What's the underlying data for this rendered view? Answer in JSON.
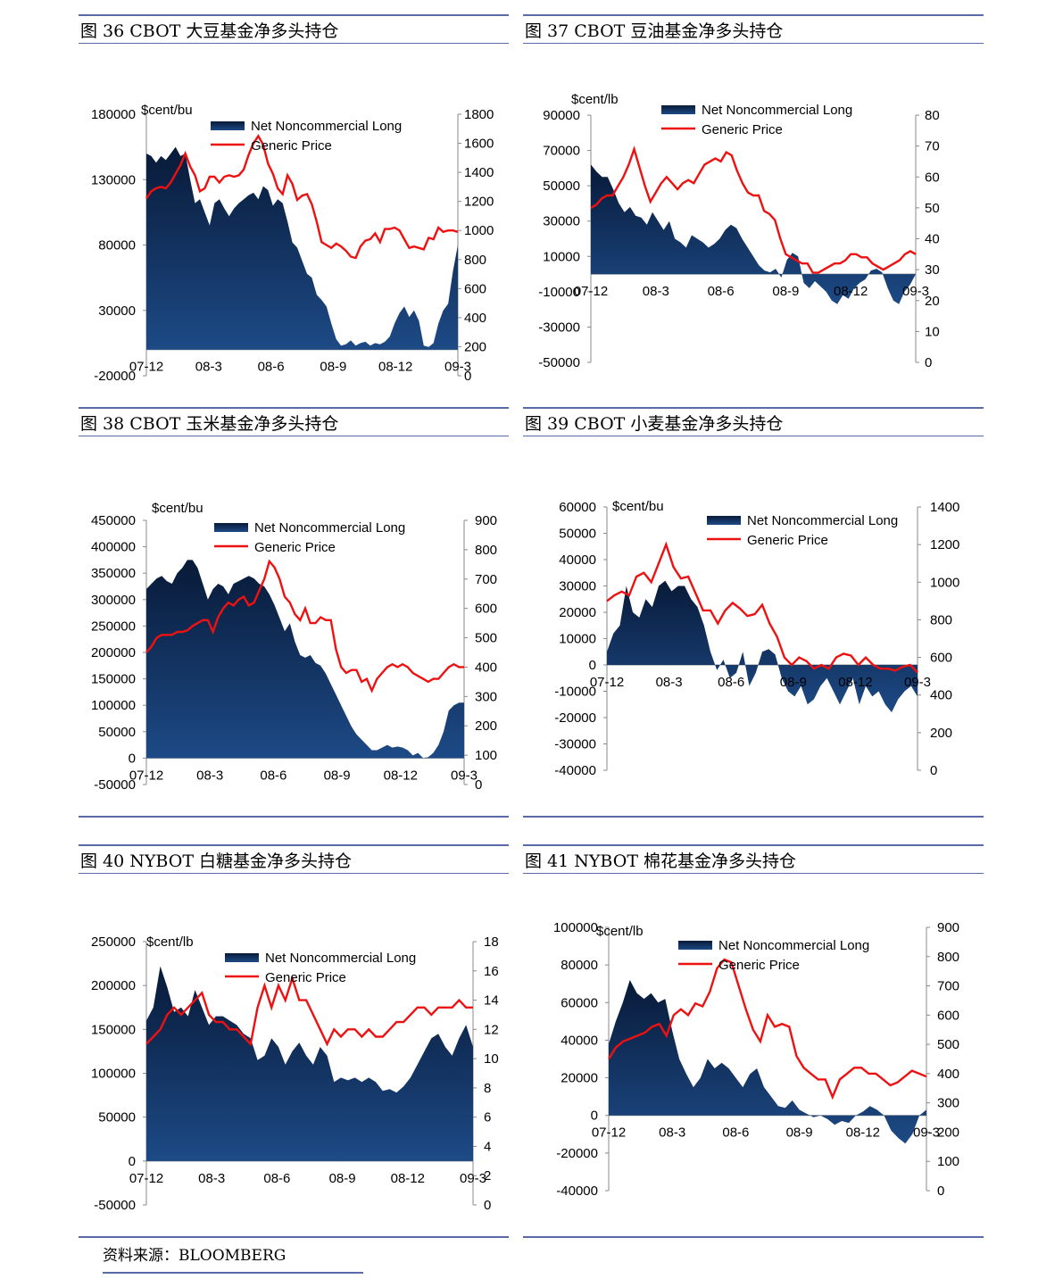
{
  "source_note": "资料来源：BLOOMBERG",
  "charts": [
    {
      "id": "c36",
      "title": "图 36 CBOT 大豆基金净多头持仓"
    },
    {
      "id": "c37",
      "title": "图 37 CBOT 豆油基金净多头持仓"
    },
    {
      "id": "c38",
      "title": "图 38 CBOT 玉米基金净多头持仓"
    },
    {
      "id": "c39",
      "title": "图 39 CBOT 小麦基金净多头持仓"
    },
    {
      "id": "c40",
      "title": "图 40 NYBOT 白糖基金净多头持仓"
    },
    {
      "id": "c41",
      "title": "图 41 NYBOT 棉花基金净多头持仓"
    }
  ],
  "chart_data": [
    {
      "type": "area+line",
      "title": "图 36 CBOT 大豆基金净多头持仓",
      "unit": "$cent/bu",
      "x_ticks": [
        "07-12",
        "08-3",
        "08-6",
        "08-9",
        "08-12",
        "09-3"
      ],
      "left_axis": {
        "ticks": [
          "-20000",
          "30000",
          "80000",
          "130000",
          "180000"
        ],
        "min": -20000,
        "max": 180000
      },
      "right_axis": {
        "ticks": [
          "0",
          "200",
          "400",
          "600",
          "800",
          "1000",
          "1200",
          "1400",
          "1600",
          "1800"
        ],
        "min": 0,
        "max": 1800
      },
      "series": [
        {
          "name": "Net Noncommercial Long",
          "axis": "left",
          "color": "#14305e",
          "values": [
            150000,
            148000,
            143000,
            148000,
            145000,
            150000,
            155000,
            148000,
            150000,
            130000,
            112000,
            115000,
            105000,
            95000,
            112000,
            115000,
            108000,
            102000,
            108000,
            112000,
            115000,
            118000,
            120000,
            115000,
            125000,
            122000,
            110000,
            115000,
            112000,
            98000,
            82000,
            78000,
            68000,
            58000,
            55000,
            42000,
            38000,
            33000,
            20000,
            8000,
            3000,
            4000,
            7000,
            3000,
            5000,
            6000,
            3000,
            5000,
            4000,
            6000,
            10000,
            20000,
            28000,
            33000,
            25000,
            30000,
            22000,
            3000,
            2000,
            5000,
            20000,
            30000,
            35000,
            60000,
            80000
          ]
        },
        {
          "name": "Generic Price",
          "axis": "right",
          "color": "#ee1111",
          "values": [
            1220,
            1270,
            1290,
            1300,
            1290,
            1330,
            1390,
            1450,
            1530,
            1440,
            1380,
            1270,
            1290,
            1370,
            1370,
            1330,
            1370,
            1380,
            1370,
            1380,
            1420,
            1520,
            1600,
            1650,
            1590,
            1460,
            1390,
            1290,
            1250,
            1380,
            1320,
            1210,
            1240,
            1250,
            1180,
            1060,
            920,
            900,
            880,
            910,
            890,
            860,
            820,
            810,
            890,
            930,
            940,
            980,
            920,
            1010,
            1010,
            1020,
            1000,
            940,
            880,
            890,
            880,
            870,
            950,
            940,
            1020,
            990,
            1000,
            1000,
            990
          ]
        }
      ]
    },
    {
      "type": "area+line",
      "title": "图 37 CBOT 豆油基金净多头持仓",
      "unit": "$cent/lb",
      "x_ticks": [
        "07-12",
        "08-3",
        "08-6",
        "08-9",
        "08-12",
        "09-3"
      ],
      "left_axis": {
        "ticks": [
          "-50000",
          "-30000",
          "-10000",
          "10000",
          "30000",
          "50000",
          "70000",
          "90000"
        ],
        "min": -50000,
        "max": 90000
      },
      "right_axis": {
        "ticks": [
          "0",
          "10",
          "20",
          "30",
          "40",
          "50",
          "60",
          "70",
          "80"
        ],
        "min": 0,
        "max": 80
      },
      "series": [
        {
          "name": "Net Noncommercial Long",
          "axis": "left",
          "color": "#14305e",
          "values": [
            62000,
            58000,
            55000,
            55000,
            48000,
            40000,
            35000,
            38000,
            33000,
            32000,
            28000,
            35000,
            30000,
            25000,
            30000,
            20000,
            18000,
            15000,
            22000,
            20000,
            18000,
            15000,
            17000,
            20000,
            25000,
            28000,
            26000,
            20000,
            15000,
            10000,
            5000,
            2000,
            1000,
            3000,
            -2000,
            8000,
            12000,
            10000,
            -5000,
            -8000,
            -4000,
            -7000,
            -10000,
            -15000,
            -17000,
            -12000,
            -14000,
            -8000,
            -5000,
            -3000,
            2000,
            3000,
            1000,
            -8000,
            -15000,
            -17000,
            -10000,
            -6000,
            0
          ]
        },
        {
          "name": "Generic Price",
          "axis": "right",
          "color": "#ee1111",
          "values": [
            50,
            51,
            53,
            54,
            54,
            57,
            60,
            64,
            69,
            63,
            57,
            52,
            55,
            58,
            60,
            58,
            56,
            58,
            59,
            58,
            61,
            64,
            65,
            66,
            65,
            68,
            67,
            62,
            58,
            55,
            54,
            54,
            49,
            48,
            46,
            40,
            35,
            34,
            33,
            32,
            32,
            29,
            29,
            30,
            31,
            32,
            32,
            33,
            35,
            35,
            34,
            34,
            32,
            31,
            30,
            31,
            32,
            33,
            35,
            36,
            35
          ]
        }
      ]
    },
    {
      "type": "area+line",
      "title": "图 38 CBOT 玉米基金净多头持仓",
      "unit": "$cent/bu",
      "x_ticks": [
        "07-12",
        "08-3",
        "08-6",
        "08-9",
        "08-12",
        "09-3"
      ],
      "left_axis": {
        "ticks": [
          "-50000",
          "0",
          "50000",
          "100000",
          "150000",
          "200000",
          "250000",
          "300000",
          "350000",
          "400000",
          "450000"
        ],
        "min": -50000,
        "max": 450000
      },
      "right_axis": {
        "ticks": [
          "0",
          "100",
          "200",
          "300",
          "400",
          "500",
          "600",
          "700",
          "800",
          "900"
        ],
        "min": 0,
        "max": 900
      },
      "series": [
        {
          "name": "Net Noncommercial Long",
          "axis": "left",
          "color": "#14305e",
          "values": [
            320000,
            330000,
            340000,
            345000,
            335000,
            330000,
            350000,
            360000,
            375000,
            375000,
            360000,
            330000,
            300000,
            320000,
            330000,
            325000,
            310000,
            330000,
            335000,
            340000,
            345000,
            340000,
            330000,
            325000,
            310000,
            290000,
            265000,
            240000,
            255000,
            220000,
            195000,
            190000,
            195000,
            180000,
            175000,
            160000,
            140000,
            120000,
            100000,
            80000,
            60000,
            45000,
            35000,
            25000,
            15000,
            15000,
            20000,
            25000,
            20000,
            22000,
            20000,
            15000,
            5000,
            10000,
            0,
            2000,
            10000,
            25000,
            50000,
            90000,
            100000,
            105000,
            105000
          ]
        },
        {
          "name": "Generic Price",
          "axis": "right",
          "color": "#ee1111",
          "values": [
            450,
            470,
            500,
            510,
            510,
            510,
            520,
            520,
            525,
            540,
            550,
            560,
            560,
            520,
            570,
            600,
            620,
            610,
            630,
            640,
            610,
            620,
            660,
            700,
            760,
            740,
            700,
            640,
            620,
            580,
            560,
            600,
            550,
            550,
            570,
            560,
            560,
            460,
            400,
            380,
            390,
            390,
            350,
            360,
            320,
            360,
            380,
            400,
            410,
            400,
            410,
            400,
            380,
            370,
            360,
            350,
            360,
            360,
            380,
            400,
            410,
            400,
            400
          ]
        }
      ]
    },
    {
      "type": "area+line",
      "title": "图 39 CBOT 小麦基金净多头持仓",
      "unit": "$cent/bu",
      "x_ticks": [
        "07-12",
        "08-3",
        "08-6",
        "08-9",
        "08-12",
        "09-3"
      ],
      "left_axis": {
        "ticks": [
          "-40000",
          "-30000",
          "-20000",
          "-10000",
          "0",
          "10000",
          "20000",
          "30000",
          "40000",
          "50000",
          "60000"
        ],
        "min": -40000,
        "max": 60000
      },
      "right_axis": {
        "ticks": [
          "0",
          "200",
          "400",
          "600",
          "800",
          "1000",
          "1200",
          "1400"
        ],
        "min": 0,
        "max": 1400
      },
      "series": [
        {
          "name": "Net Noncommercial Long",
          "axis": "left",
          "color": "#14305e",
          "values": [
            5000,
            12000,
            15000,
            30000,
            20000,
            18000,
            25000,
            22000,
            30000,
            32000,
            28000,
            30000,
            30000,
            25000,
            22000,
            15000,
            5000,
            -2000,
            2000,
            -5000,
            -3000,
            5000,
            -8000,
            -3000,
            5000,
            6000,
            4000,
            -5000,
            -10000,
            -12000,
            -8000,
            -15000,
            -13000,
            -8000,
            -5000,
            -10000,
            -15000,
            -10000,
            -5000,
            -15000,
            -8000,
            -12000,
            -10000,
            -15000,
            -18000,
            -13000,
            -10000,
            -8000,
            -12000
          ]
        },
        {
          "name": "Generic Price",
          "axis": "right",
          "color": "#ee1111",
          "values": [
            900,
            930,
            950,
            930,
            1030,
            1050,
            1000,
            1100,
            1200,
            1080,
            1020,
            1030,
            940,
            850,
            850,
            780,
            850,
            890,
            860,
            820,
            830,
            880,
            780,
            710,
            600,
            560,
            600,
            580,
            540,
            560,
            540,
            600,
            620,
            610,
            560,
            600,
            560,
            540,
            540,
            530,
            550,
            560,
            520
          ]
        }
      ]
    },
    {
      "type": "area+line",
      "title": "图 40 NYBOT 白糖基金净多头持仓",
      "unit": "$cent/lb",
      "x_ticks": [
        "07-12",
        "08-3",
        "08-6",
        "08-9",
        "08-12",
        "09-3"
      ],
      "left_axis": {
        "ticks": [
          "-50000",
          "0",
          "50000",
          "100000",
          "150000",
          "200000",
          "250000"
        ],
        "min": -50000,
        "max": 250000
      },
      "right_axis": {
        "ticks": [
          "0",
          "2",
          "4",
          "6",
          "8",
          "10",
          "12",
          "14",
          "16",
          "18"
        ],
        "min": 0,
        "max": 18
      },
      "series": [
        {
          "name": "Net Noncommercial Long",
          "axis": "left",
          "color": "#14305e",
          "values": [
            160000,
            175000,
            222000,
            198000,
            170000,
            175000,
            165000,
            195000,
            175000,
            155000,
            165000,
            165000,
            160000,
            155000,
            145000,
            140000,
            115000,
            120000,
            140000,
            130000,
            110000,
            125000,
            135000,
            120000,
            110000,
            130000,
            120000,
            90000,
            95000,
            92000,
            95000,
            90000,
            95000,
            90000,
            80000,
            82000,
            78000,
            85000,
            95000,
            110000,
            125000,
            140000,
            145000,
            130000,
            120000,
            140000,
            155000,
            130000
          ]
        },
        {
          "name": "Generic Price",
          "axis": "right",
          "color": "#ee1111",
          "values": [
            11,
            11.5,
            12,
            13,
            13.5,
            13,
            13.5,
            14,
            14.5,
            13,
            12.5,
            12.5,
            12,
            12,
            11.5,
            11,
            13.5,
            15,
            13.5,
            15,
            14,
            15.5,
            14,
            14,
            13,
            12,
            11,
            12,
            11.5,
            12,
            12,
            11.5,
            12,
            11.5,
            11.5,
            12,
            12.5,
            12.5,
            13,
            13.5,
            13.5,
            13,
            13.5,
            13.5,
            13.5,
            14,
            13.5,
            13.5
          ]
        }
      ]
    },
    {
      "type": "area+line",
      "title": "图 41 NYBOT 棉花基金净多头持仓",
      "unit": "$cent/lb",
      "x_ticks": [
        "07-12",
        "08-3",
        "08-6",
        "08-9",
        "08-12",
        "09-3"
      ],
      "left_axis": {
        "ticks": [
          "-40000",
          "-20000",
          "0",
          "20000",
          "40000",
          "60000",
          "80000",
          "100000"
        ],
        "min": -40000,
        "max": 100000
      },
      "right_axis": {
        "ticks": [
          "0",
          "100",
          "200",
          "300",
          "400",
          "500",
          "600",
          "700",
          "800",
          "900"
        ],
        "min": 0,
        "max": 900
      },
      "series": [
        {
          "name": "Net Noncommercial Long",
          "axis": "left",
          "color": "#14305e",
          "values": [
            38000,
            50000,
            60000,
            72000,
            65000,
            62000,
            65000,
            60000,
            62000,
            45000,
            30000,
            22000,
            15000,
            20000,
            30000,
            25000,
            28000,
            25000,
            20000,
            15000,
            22000,
            25000,
            15000,
            10000,
            5000,
            4000,
            8000,
            3000,
            1000,
            -1000,
            0,
            -2000,
            -5000,
            -3000,
            -4000,
            0,
            2000,
            5000,
            3000,
            0,
            -8000,
            -12000,
            -15000,
            -10000,
            0,
            3000
          ]
        },
        {
          "name": "Generic Price",
          "axis": "right",
          "color": "#ee1111",
          "values": [
            450,
            490,
            510,
            520,
            530,
            540,
            560,
            570,
            530,
            600,
            620,
            600,
            640,
            630,
            680,
            760,
            790,
            780,
            700,
            620,
            550,
            510,
            600,
            560,
            570,
            560,
            460,
            420,
            400,
            380,
            380,
            320,
            380,
            400,
            420,
            420,
            400,
            400,
            380,
            360,
            370,
            390,
            410,
            400,
            390
          ]
        }
      ]
    }
  ]
}
